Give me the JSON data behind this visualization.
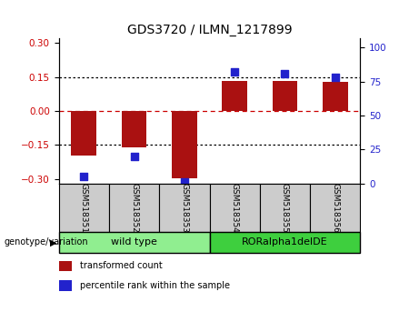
{
  "title": "GDS3720 / ILMN_1217899",
  "samples": [
    "GSM518351",
    "GSM518352",
    "GSM518353",
    "GSM518354",
    "GSM518355",
    "GSM518356"
  ],
  "bar_values": [
    -0.195,
    -0.16,
    -0.295,
    0.135,
    0.135,
    0.128
  ],
  "scatter_values": [
    5,
    20,
    1,
    82,
    81,
    78
  ],
  "groups": [
    {
      "label": "wild type",
      "start": 0,
      "end": 3,
      "color": "#90ee90"
    },
    {
      "label": "RORalpha1delDE",
      "start": 3,
      "end": 6,
      "color": "#3ecf3e"
    }
  ],
  "bar_color": "#aa1111",
  "scatter_color": "#2222cc",
  "ylim_left": [
    -0.32,
    0.32
  ],
  "ylim_right": [
    0,
    106.67
  ],
  "yticks_left": [
    -0.3,
    -0.15,
    0,
    0.15,
    0.3
  ],
  "yticks_right": [
    0,
    25,
    50,
    75,
    100
  ],
  "hlines": [
    -0.15,
    0,
    0.15
  ],
  "hline_zero_color": "#cc0000",
  "hline_other_color": "#000000",
  "legend_items": [
    {
      "label": "transformed count",
      "color": "#aa1111"
    },
    {
      "label": "percentile rank within the sample",
      "color": "#2222cc"
    }
  ],
  "genotype_label": "genotype/variation",
  "bar_width": 0.5,
  "scatter_marker_size": 36,
  "label_bg": "#cccccc",
  "group_border_color": "#000000"
}
